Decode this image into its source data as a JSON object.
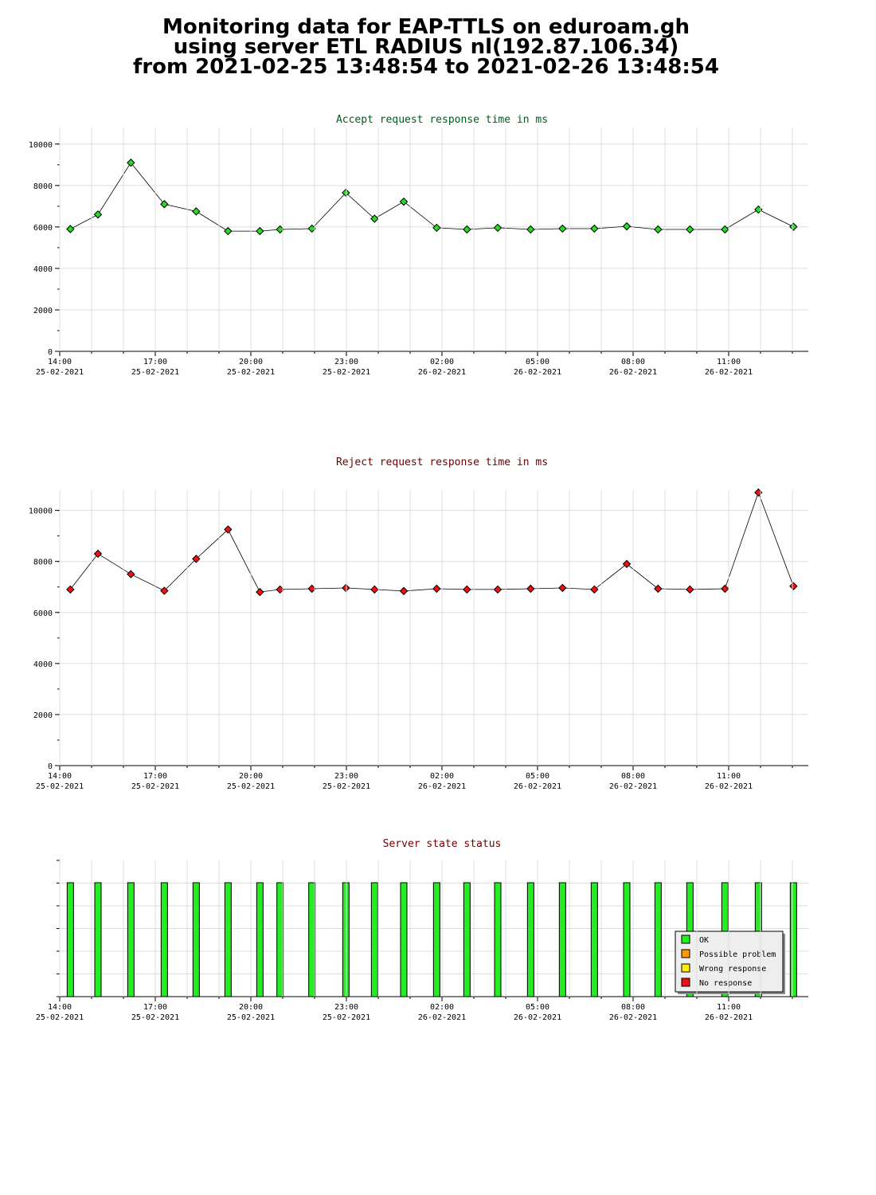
{
  "page": {
    "title_line1": "Monitoring data for EAP-TTLS on eduroam.gh",
    "title_line2": "using server ETL RADIUS nl(192.87.106.34)",
    "title_line3": "from 2021-02-25 13:48:54 to 2021-02-26 13:48:54"
  },
  "colors": {
    "accept_title": "#005a1e",
    "reject_title": "#6e0000",
    "status_title": "#6e0000",
    "accept_marker": "#22dd22",
    "reject_marker": "#ee1111",
    "ok": "#22ee22",
    "possible_problem": "#ff9900",
    "wrong_response": "#ffee00",
    "no_response": "#ee1111",
    "grid": "#dddddd"
  },
  "x_ticks": [
    {
      "time": "14:00",
      "date": "25-02-2021"
    },
    {
      "time": "17:00",
      "date": "25-02-2021"
    },
    {
      "time": "20:00",
      "date": "25-02-2021"
    },
    {
      "time": "23:00",
      "date": "25-02-2021"
    },
    {
      "time": "02:00",
      "date": "26-02-2021"
    },
    {
      "time": "05:00",
      "date": "26-02-2021"
    },
    {
      "time": "08:00",
      "date": "26-02-2021"
    },
    {
      "time": "11:00",
      "date": "26-02-2021"
    }
  ],
  "chart_data": [
    {
      "type": "line",
      "title": "Accept request response time in ms",
      "x_range": [
        "2021-02-25 14:00",
        "2021-02-26 13:30"
      ],
      "ylim": [
        0,
        10800
      ],
      "y_ticks": [
        0,
        2000,
        4000,
        6000,
        8000,
        10000
      ],
      "grid": true,
      "x": [
        "2021-02-25 14:20",
        "2021-02-25 15:12",
        "2021-02-25 16:14",
        "2021-02-25 17:17",
        "2021-02-25 18:17",
        "2021-02-25 19:17",
        "2021-02-25 20:17",
        "2021-02-25 20:55",
        "2021-02-25 21:55",
        "2021-02-25 22:59",
        "2021-02-25 23:53",
        "2021-02-26 00:48",
        "2021-02-26 01:50",
        "2021-02-26 02:47",
        "2021-02-26 03:45",
        "2021-02-26 04:47",
        "2021-02-26 05:47",
        "2021-02-26 06:47",
        "2021-02-26 07:48",
        "2021-02-26 08:47",
        "2021-02-26 09:47",
        "2021-02-26 10:53",
        "2021-02-26 11:56",
        "2021-02-26 13:02"
      ],
      "values": [
        5900,
        6600,
        9100,
        7100,
        6750,
        5800,
        5800,
        5880,
        5920,
        7650,
        6400,
        7220,
        5960,
        5880,
        5960,
        5880,
        5920,
        5920,
        6030,
        5880,
        5880,
        5880,
        6840,
        6010
      ]
    },
    {
      "type": "line",
      "title": "Reject request response time in ms",
      "x_range": [
        "2021-02-25 14:00",
        "2021-02-26 13:30"
      ],
      "ylim": [
        0,
        10800
      ],
      "y_ticks": [
        0,
        2000,
        4000,
        6000,
        8000,
        10000
      ],
      "grid": true,
      "x": [
        "2021-02-25 14:20",
        "2021-02-25 15:12",
        "2021-02-25 16:14",
        "2021-02-25 17:17",
        "2021-02-25 18:17",
        "2021-02-25 19:17",
        "2021-02-25 20:17",
        "2021-02-25 20:55",
        "2021-02-25 21:55",
        "2021-02-25 22:59",
        "2021-02-25 23:53",
        "2021-02-26 00:48",
        "2021-02-26 01:50",
        "2021-02-26 02:47",
        "2021-02-26 03:45",
        "2021-02-26 04:47",
        "2021-02-26 05:47",
        "2021-02-26 06:47",
        "2021-02-26 07:48",
        "2021-02-26 08:47",
        "2021-02-26 09:47",
        "2021-02-26 10:53",
        "2021-02-26 11:56",
        "2021-02-26 13:02"
      ],
      "values": [
        6900,
        8300,
        7500,
        6850,
        8100,
        9250,
        6800,
        6900,
        6930,
        6960,
        6900,
        6840,
        6930,
        6900,
        6900,
        6930,
        6960,
        6900,
        7900,
        6930,
        6900,
        6930,
        10700,
        7030
      ]
    },
    {
      "type": "bar",
      "title": "Server state status",
      "x_range": [
        "2021-02-25 14:00",
        "2021-02-26 13:30"
      ],
      "grid": true,
      "legend_position": "bottom-right",
      "legend": [
        "OK",
        "Possible problem",
        "Wrong response",
        "No response"
      ],
      "x": [
        "2021-02-25 14:20",
        "2021-02-25 15:12",
        "2021-02-25 16:14",
        "2021-02-25 17:17",
        "2021-02-25 18:17",
        "2021-02-25 19:17",
        "2021-02-25 20:17",
        "2021-02-25 20:55",
        "2021-02-25 21:55",
        "2021-02-25 22:59",
        "2021-02-25 23:53",
        "2021-02-26 00:48",
        "2021-02-26 01:50",
        "2021-02-26 02:47",
        "2021-02-26 03:45",
        "2021-02-26 04:47",
        "2021-02-26 05:47",
        "2021-02-26 06:47",
        "2021-02-26 07:48",
        "2021-02-26 08:47",
        "2021-02-26 09:47",
        "2021-02-26 10:53",
        "2021-02-26 11:56",
        "2021-02-26 13:02"
      ],
      "states": [
        "OK",
        "OK",
        "OK",
        "OK",
        "OK",
        "OK",
        "OK",
        "OK",
        "OK",
        "OK",
        "OK",
        "OK",
        "OK",
        "OK",
        "OK",
        "OK",
        "OK",
        "OK",
        "OK",
        "OK",
        "OK",
        "OK",
        "OK",
        "OK"
      ]
    }
  ]
}
